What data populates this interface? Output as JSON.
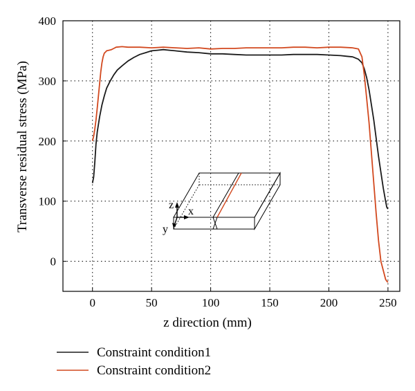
{
  "chart_data": {
    "type": "line",
    "title": "",
    "xlabel": "z direction (mm)",
    "ylabel": "Transverse residual stress (MPa)",
    "xlim": [
      -25,
      260
    ],
    "ylim": [
      -50,
      400
    ],
    "xticks": [
      0,
      50,
      100,
      150,
      200,
      250
    ],
    "yticks": [
      0,
      100,
      200,
      300,
      400
    ],
    "grid": true,
    "legend_position": "bottom-left, below plot",
    "inset_labels": {
      "z": "z",
      "x": "x",
      "y": "y"
    },
    "series": [
      {
        "name": "Constraint condition1",
        "color": "#1a1a1a",
        "x": [
          0,
          1,
          2,
          3,
          4,
          6,
          8,
          10,
          12,
          15,
          18,
          21,
          25,
          30,
          35,
          40,
          45,
          50,
          55,
          60,
          65,
          70,
          80,
          90,
          100,
          110,
          120,
          130,
          140,
          150,
          160,
          170,
          180,
          190,
          200,
          210,
          215,
          220,
          225,
          228,
          230,
          232,
          234,
          236,
          238,
          240,
          242,
          244,
          246,
          248,
          249,
          250
        ],
        "y": [
          130,
          140,
          165,
          195,
          215,
          240,
          260,
          275,
          288,
          300,
          310,
          318,
          325,
          333,
          339,
          344,
          347,
          350,
          351,
          352,
          351,
          350,
          348,
          347,
          345,
          345,
          344,
          343,
          343,
          343,
          343,
          344,
          344,
          344,
          343,
          342,
          341,
          340,
          336,
          330,
          320,
          305,
          285,
          260,
          235,
          205,
          175,
          148,
          122,
          100,
          90,
          87
        ]
      },
      {
        "name": "Constraint condition2",
        "color": "#d2481e",
        "x": [
          0,
          1,
          2,
          3,
          4,
          5,
          6,
          7,
          8,
          9,
          10,
          11,
          12,
          14,
          16,
          18,
          20,
          25,
          30,
          40,
          50,
          60,
          70,
          80,
          90,
          100,
          110,
          120,
          130,
          140,
          150,
          160,
          170,
          180,
          190,
          200,
          210,
          220,
          225,
          228,
          230,
          232,
          234,
          236,
          238,
          240,
          242,
          244,
          246,
          248,
          249,
          250
        ],
        "y": [
          200,
          208,
          220,
          235,
          255,
          275,
          295,
          315,
          330,
          340,
          346,
          348,
          350,
          351,
          352,
          354,
          356,
          357,
          356,
          356,
          355,
          356,
          355,
          354,
          355,
          353,
          354,
          354,
          355,
          355,
          355,
          355,
          356,
          356,
          355,
          356,
          356,
          355,
          353,
          340,
          310,
          270,
          230,
          180,
          130,
          80,
          35,
          0,
          -15,
          -30,
          -33,
          -35
        ]
      }
    ]
  }
}
